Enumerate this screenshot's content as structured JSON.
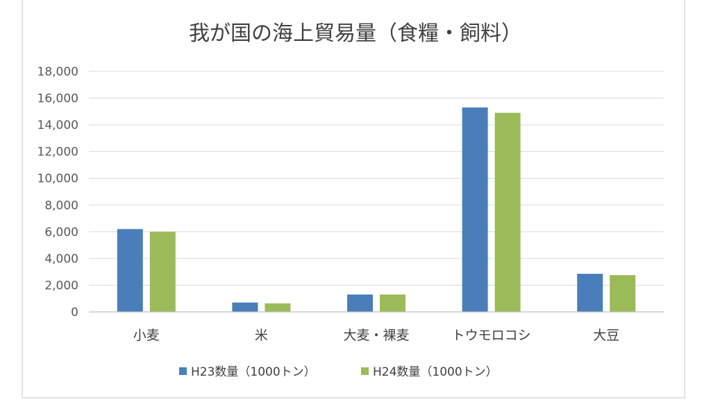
{
  "chart_data": {
    "type": "bar",
    "title": "我が国の海上貿易量（食糧・飼料）",
    "xlabel": "",
    "ylabel": "",
    "categories": [
      "小麦",
      "米",
      "大麦・裸麦",
      "トウモロコシ",
      "大豆"
    ],
    "series": [
      {
        "name": "H23数量（1000トン）",
        "color": "#4a7ebb",
        "values": [
          6200,
          700,
          1300,
          15300,
          2850
        ]
      },
      {
        "name": "H24数量（1000トン）",
        "color": "#9bbb59",
        "values": [
          6000,
          640,
          1300,
          14900,
          2750
        ]
      }
    ],
    "ylim": [
      0,
      18000
    ],
    "yticks": [
      "0",
      "2,000",
      "4,000",
      "6,000",
      "8,000",
      "10,000",
      "12,000",
      "14,000",
      "16,000",
      "18,000"
    ],
    "grid": true,
    "legend_position": "bottom"
  }
}
